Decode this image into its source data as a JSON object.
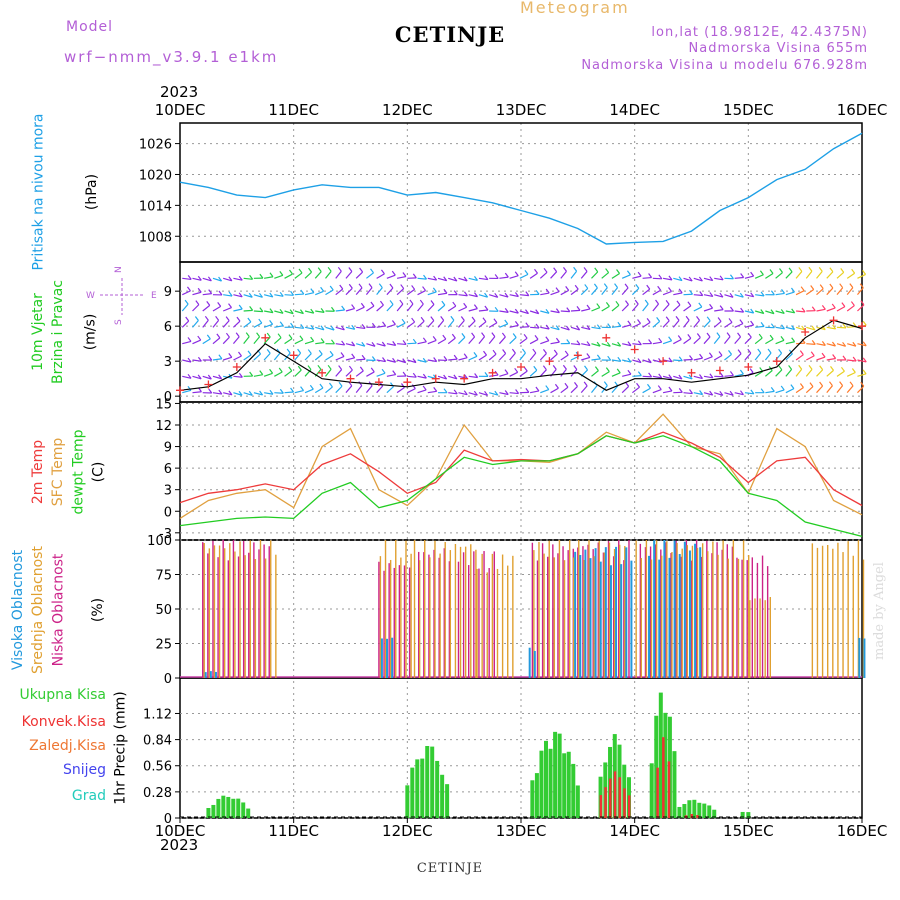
{
  "header": {
    "title": "CETINJE",
    "model_label": "Model",
    "model_value": "wrf−nmm_v3.9.1  e1km",
    "meteogram_label": "Meteogram",
    "info_lines": [
      "lon,lat (18.9812E, 42.4375N)",
      "Nadmorska Visina 655m",
      "Nadmorska Visina u modelu 676.928m"
    ]
  },
  "x_axis": {
    "year": "2023",
    "ticks": [
      "10DEC",
      "11DEC",
      "12DEC",
      "13DEC",
      "14DEC",
      "15DEC",
      "16DEC"
    ]
  },
  "footer": "CETINJE",
  "watermark": "made by Angel",
  "colors": {
    "pressure": "#1ea0e6",
    "t2m": "#ee3b3b",
    "tsfc": "#e0a040",
    "dewpt": "#22cc22",
    "low_cloud": "#cc2288",
    "mid_cloud": "#e0a030",
    "high_cloud": "#2299dd",
    "total_precip": "#33cc33",
    "conv_precip": "#ee3333",
    "legend_purple": "#b35fd6"
  },
  "chart_data": [
    {
      "type": "line",
      "ylabel": "(hPa)",
      "side_label": "Pritisak na nivou mora",
      "yticks": [
        "1026",
        "1020",
        "1014",
        "1008"
      ],
      "ylim": [
        1003,
        1030
      ],
      "x_days": [
        0,
        0.25,
        0.5,
        0.75,
        1,
        1.25,
        1.5,
        1.75,
        2,
        2.25,
        2.5,
        2.75,
        3,
        3.25,
        3.5,
        3.75,
        4,
        4.25,
        4.5,
        4.75,
        5,
        5.25,
        5.5,
        5.75,
        6
      ],
      "series": [
        {
          "values": [
            1018.5,
            1017.5,
            1016,
            1015.5,
            1017,
            1018,
            1017.5,
            1017.5,
            1016,
            1016.5,
            1015.5,
            1014.5,
            1013,
            1011.5,
            1009.5,
            1006.5,
            1006.8,
            1007,
            1009,
            1013,
            1015.5,
            1019,
            1021,
            1025,
            1028
          ]
        }
      ]
    },
    {
      "type": "scatter",
      "ylabel": "(m/s)",
      "side_label": [
        "10m Vjetar",
        "Brzina i Pravac"
      ],
      "compass": {
        "n": "N",
        "s": "S",
        "w": "W",
        "e": "E"
      },
      "yticks": [
        "9",
        "6",
        "3",
        "0"
      ],
      "ylim": [
        -0.5,
        11.5
      ],
      "x_days": [
        0,
        0.25,
        0.5,
        0.75,
        1,
        1.25,
        1.5,
        1.75,
        2,
        2.25,
        2.5,
        2.75,
        3,
        3.25,
        3.5,
        3.75,
        4,
        4.25,
        4.5,
        4.75,
        5,
        5.25,
        5.5,
        5.75,
        6
      ],
      "series": [
        {
          "values": [
            0.5,
            0.8,
            2,
            4.5,
            3,
            1.5,
            1.2,
            1,
            0.8,
            1.2,
            1,
            1.5,
            1.5,
            1.8,
            2,
            0.5,
            1.5,
            1.5,
            1.2,
            1.5,
            1.8,
            2.5,
            5,
            6.5,
            5.8
          ]
        },
        {
          "values": [
            0.5,
            1,
            2.5,
            5,
            3.5,
            2,
            1.5,
            1.2,
            1.2,
            1.5,
            1.5,
            2,
            2.5,
            3,
            3.5,
            5,
            4,
            3,
            2,
            2.2,
            2.5,
            3,
            5.5,
            6.5,
            6
          ]
        }
      ]
    },
    {
      "type": "line",
      "ylabel": "(C)",
      "side_label": [
        "2m Temp",
        "SFC Temp",
        "dewpt Temp"
      ],
      "yticks": [
        "15",
        "12",
        "9",
        "6",
        "3",
        "0",
        "-3"
      ],
      "ylim": [
        -4,
        15.2
      ],
      "x_days": [
        0,
        0.25,
        0.5,
        0.75,
        1,
        1.25,
        1.5,
        1.75,
        2,
        2.25,
        2.5,
        2.75,
        3,
        3.25,
        3.5,
        3.75,
        4,
        4.25,
        4.5,
        4.75,
        5,
        5.25,
        5.5,
        5.75,
        6
      ],
      "series": [
        {
          "name": "2m Temp",
          "values": [
            1.2,
            2.5,
            3.0,
            3.8,
            3.0,
            6.5,
            8.0,
            5.5,
            2.5,
            4.0,
            8.5,
            7.0,
            7.2,
            7.0,
            8.0,
            10.5,
            9.5,
            11.0,
            9.5,
            7.5,
            4.0,
            7.0,
            7.5,
            3.0,
            0.8
          ]
        },
        {
          "name": "SFC Temp",
          "values": [
            -1.0,
            1.5,
            2.5,
            3.0,
            0.5,
            9.0,
            11.5,
            3.0,
            0.8,
            4.5,
            12.0,
            7.0,
            7.0,
            6.8,
            8.0,
            11.0,
            9.5,
            13.5,
            9.0,
            8.0,
            2.5,
            11.5,
            9.0,
            1.5,
            -0.5
          ]
        },
        {
          "name": "dewpt Temp",
          "values": [
            -2.0,
            -1.5,
            -1.0,
            -0.8,
            -1.0,
            2.5,
            4.0,
            0.5,
            1.5,
            4.5,
            7.5,
            6.5,
            7.0,
            7.0,
            8.0,
            10.5,
            9.5,
            10.5,
            9.0,
            7.0,
            2.5,
            1.5,
            -1.5,
            -2.5,
            -3.5
          ]
        }
      ]
    },
    {
      "type": "bar",
      "ylabel": "(%)",
      "side_label": [
        "Visoka Oblacnost",
        "Srednja Oblacnost",
        "Niska Oblacnost"
      ],
      "yticks": [
        "100",
        "75",
        "50",
        "25",
        "0"
      ],
      "ylim": [
        0,
        100
      ],
      "series": [
        {
          "name": "Niska Oblacnost",
          "segments": [
            [
              0.2,
              0.8,
              100
            ],
            [
              1.75,
              2.05,
              85
            ],
            [
              2.1,
              2.4,
              95
            ],
            [
              2.45,
              2.8,
              92
            ],
            [
              3.1,
              3.5,
              98
            ],
            [
              3.5,
              3.95,
              100
            ],
            [
              4.05,
              4.9,
              100
            ],
            [
              4.9,
              5.2,
              90
            ]
          ]
        },
        {
          "name": "Srednja Oblacnost",
          "segments": [
            [
              0.2,
              0.85,
              100
            ],
            [
              1.75,
              2.05,
              100
            ],
            [
              2.05,
              2.6,
              100
            ],
            [
              2.6,
              2.95,
              90
            ],
            [
              3.1,
              3.45,
              100
            ],
            [
              3.45,
              3.9,
              100
            ],
            [
              4.0,
              5.0,
              100
            ],
            [
              5.0,
              5.2,
              60
            ],
            [
              5.55,
              6.0,
              100
            ]
          ]
        },
        {
          "name": "Visoka Oblacnost",
          "segments": [
            [
              0.2,
              0.3,
              5
            ],
            [
              1.75,
              1.85,
              30
            ],
            [
              3.05,
              3.1,
              22
            ],
            [
              3.45,
              3.95,
              95
            ],
            [
              4.1,
              4.55,
              100
            ],
            [
              5.95,
              6.0,
              30
            ]
          ]
        }
      ]
    },
    {
      "type": "bar",
      "ylabel": "1hr Precip (mm)",
      "legend": [
        "Ukupna Kisa",
        "Konvek.Kisa",
        "Zaledj.Kisa",
        "Snijeg",
        "Grad"
      ],
      "yticks": [
        "1.12",
        "0.84",
        "0.56",
        "0.28",
        "0"
      ],
      "ylim": [
        0,
        1.5
      ],
      "series": [
        {
          "name": "Ukupna Kisa",
          "groups": [
            [
              0.25,
              0.6,
              0.25
            ],
            [
              2.0,
              2.35,
              0.8
            ],
            [
              3.1,
              3.5,
              0.95
            ],
            [
              3.7,
              3.95,
              0.9
            ],
            [
              4.15,
              4.35,
              1.4
            ],
            [
              4.35,
              4.7,
              0.2
            ],
            [
              4.95,
              5.0,
              0.08
            ]
          ]
        },
        {
          "name": "Konvek.Kisa",
          "groups": [
            [
              3.7,
              3.95,
              0.5
            ],
            [
              4.2,
              4.3,
              0.9
            ],
            [
              4.45,
              4.55,
              0.05
            ]
          ]
        }
      ]
    }
  ]
}
